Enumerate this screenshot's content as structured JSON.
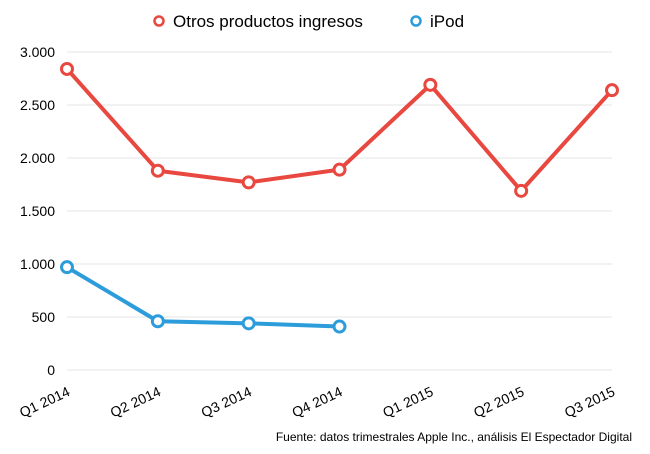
{
  "chart_data": {
    "type": "line",
    "categories": [
      "Q1 2014",
      "Q2 2014",
      "Q3 2014",
      "Q4 2014",
      "Q1 2015",
      "Q2 2015",
      "Q3 2015"
    ],
    "series": [
      {
        "name": "Otros productos ingresos",
        "color": "#e8483f",
        "values": [
          2840,
          1880,
          1770,
          1890,
          2690,
          1690,
          2640
        ]
      },
      {
        "name": "iPod",
        "color": "#2d9cdb",
        "values": [
          970,
          460,
          440,
          410,
          null,
          null,
          null
        ]
      }
    ],
    "yticks": [
      0,
      500,
      1000,
      1500,
      2000,
      2500,
      3000
    ],
    "ytick_labels": [
      "0",
      "500",
      "1.000",
      "1.500",
      "2.000",
      "2.500",
      "3.000"
    ],
    "ylim": [
      0,
      3000
    ],
    "grid": true,
    "legend_position": "top",
    "source": "Fuente: datos trimestrales Apple Inc., análisis El Espectador Digital"
  }
}
